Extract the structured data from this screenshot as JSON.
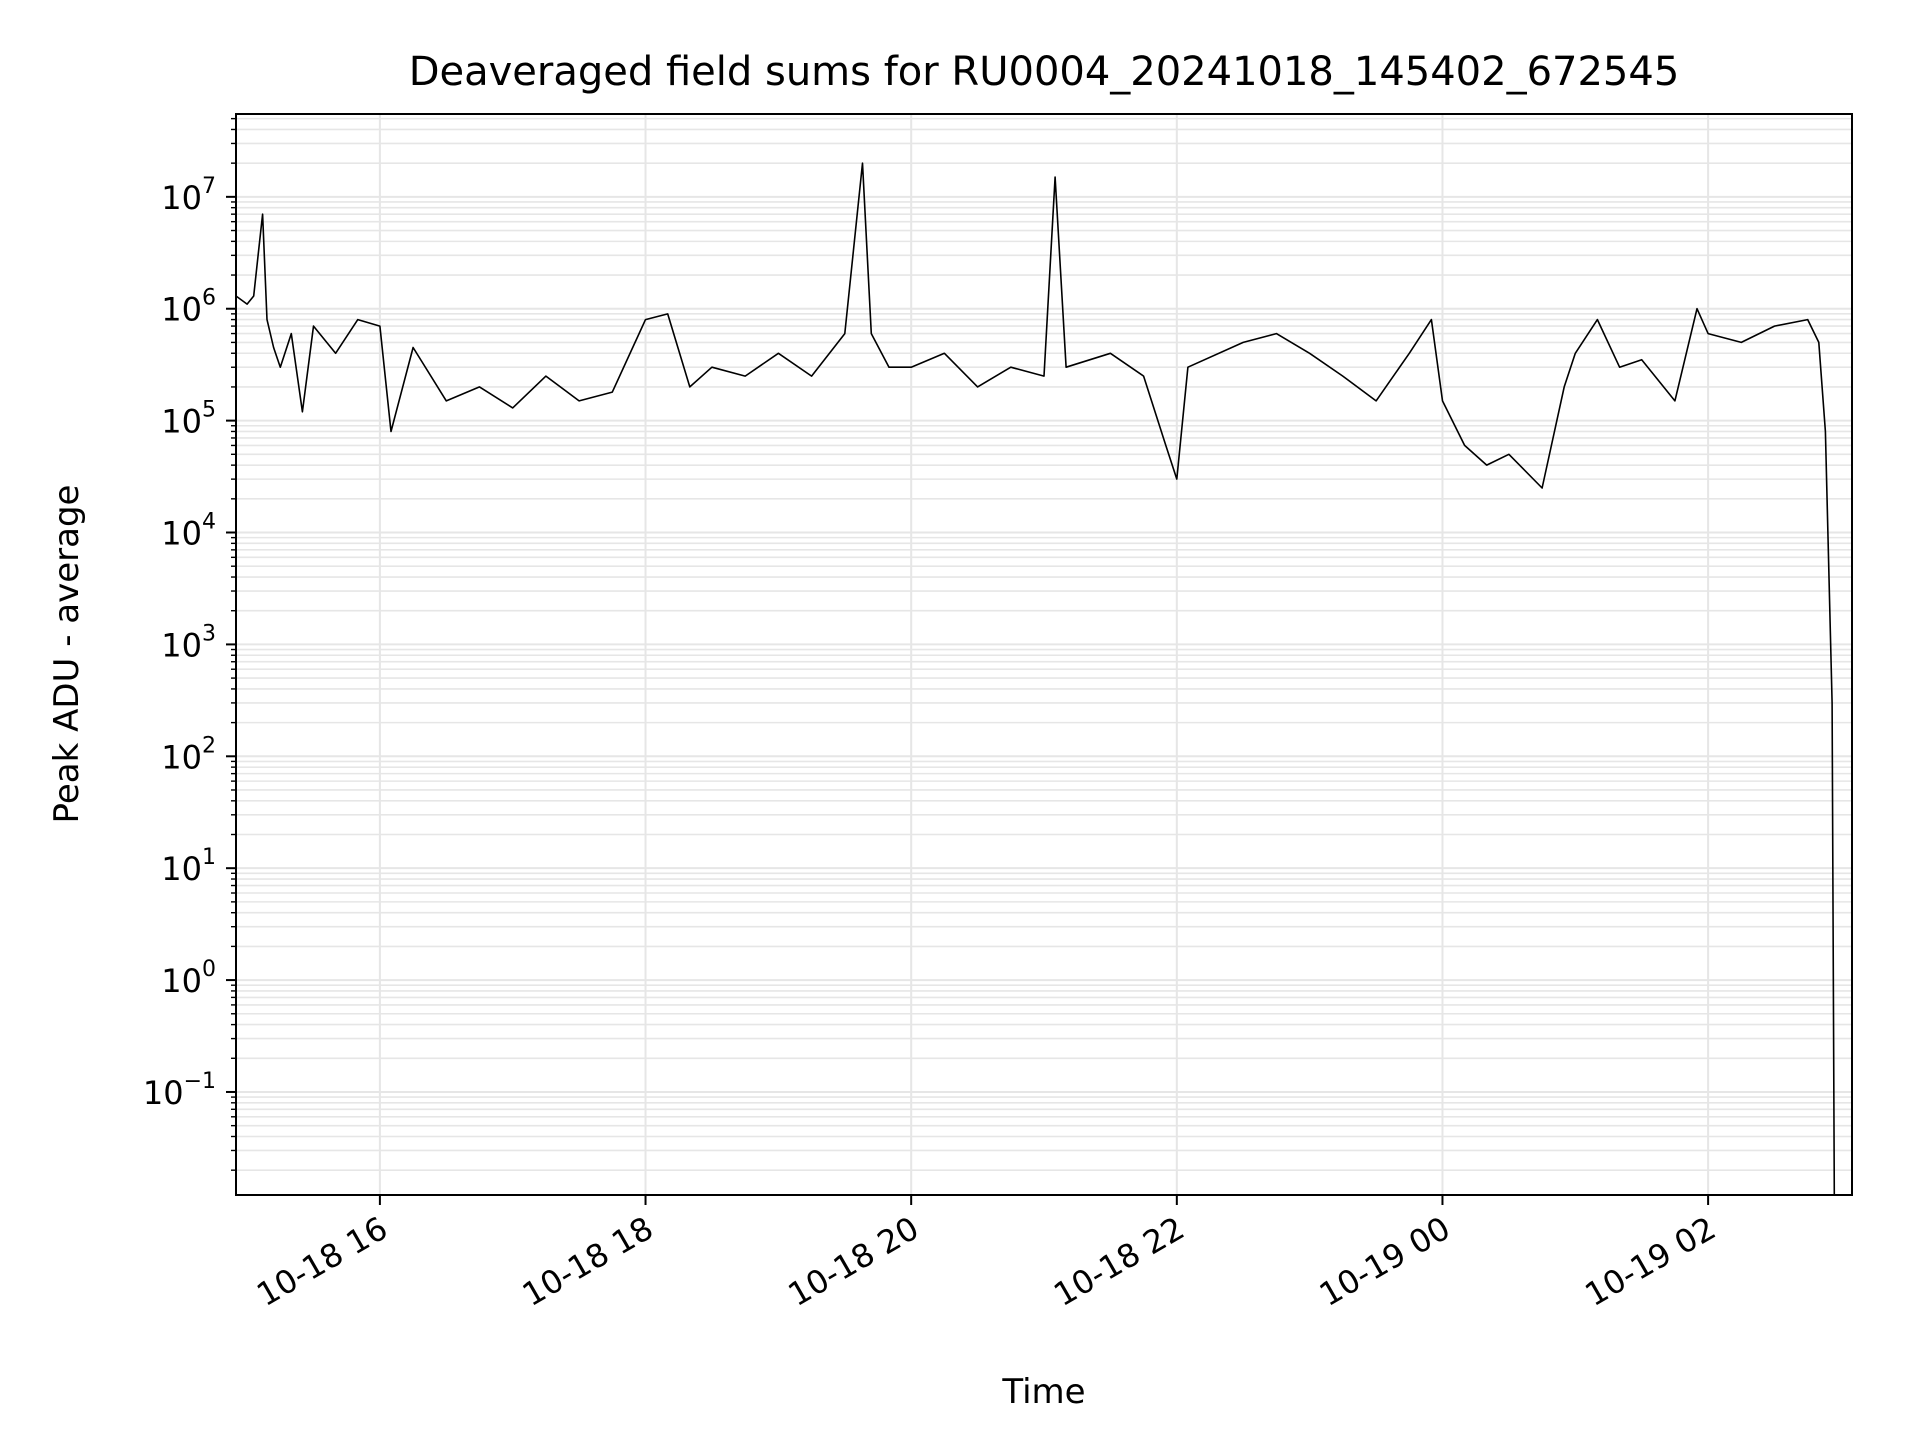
{
  "chart_data": {
    "type": "line",
    "title": "Deaveraged field sums for RU0004_20241018_145402_672545",
    "xlabel": "Time",
    "ylabel": "Peak ADU - average",
    "y_scale": "log",
    "ylim": [
      0.012,
      55000000
    ],
    "xlim": [
      "2024-10-18 14:55",
      "2024-10-19 03:05"
    ],
    "grid": "major and minor, light gray",
    "x_ticks": [
      {
        "t": "2024-10-18 16:00",
        "label": "10-18 16"
      },
      {
        "t": "2024-10-18 18:00",
        "label": "10-18 18"
      },
      {
        "t": "2024-10-18 20:00",
        "label": "10-18 20"
      },
      {
        "t": "2024-10-18 22:00",
        "label": "10-18 22"
      },
      {
        "t": "2024-10-19 00:00",
        "label": "10-19 00"
      },
      {
        "t": "2024-10-19 02:00",
        "label": "10-19 02"
      }
    ],
    "y_ticks": [
      {
        "value": 0.1,
        "base": "10",
        "exp": "−1"
      },
      {
        "value": 1,
        "base": "10",
        "exp": "0"
      },
      {
        "value": 10,
        "base": "10",
        "exp": "1"
      },
      {
        "value": 100,
        "base": "10",
        "exp": "2"
      },
      {
        "value": 1000,
        "base": "10",
        "exp": "3"
      },
      {
        "value": 10000,
        "base": "10",
        "exp": "4"
      },
      {
        "value": 100000,
        "base": "10",
        "exp": "5"
      },
      {
        "value": 1000000,
        "base": "10",
        "exp": "6"
      },
      {
        "value": 10000000,
        "base": "10",
        "exp": "7"
      }
    ],
    "series": [
      {
        "color": "#000000",
        "points": [
          [
            "2024-10-18 14:55",
            1300000
          ],
          [
            "2024-10-18 15:00",
            1100000
          ],
          [
            "2024-10-18 15:03",
            1300000
          ],
          [
            "2024-10-18 15:05",
            3000000
          ],
          [
            "2024-10-18 15:07",
            7000000
          ],
          [
            "2024-10-18 15:09",
            800000
          ],
          [
            "2024-10-18 15:12",
            450000
          ],
          [
            "2024-10-18 15:15",
            300000
          ],
          [
            "2024-10-18 15:20",
            600000
          ],
          [
            "2024-10-18 15:25",
            120000
          ],
          [
            "2024-10-18 15:30",
            700000
          ],
          [
            "2024-10-18 15:40",
            400000
          ],
          [
            "2024-10-18 15:50",
            800000
          ],
          [
            "2024-10-18 16:00",
            700000
          ],
          [
            "2024-10-18 16:05",
            80000
          ],
          [
            "2024-10-18 16:15",
            450000
          ],
          [
            "2024-10-18 16:30",
            150000
          ],
          [
            "2024-10-18 16:45",
            200000
          ],
          [
            "2024-10-18 17:00",
            130000
          ],
          [
            "2024-10-18 17:15",
            250000
          ],
          [
            "2024-10-18 17:30",
            150000
          ],
          [
            "2024-10-18 17:45",
            180000
          ],
          [
            "2024-10-18 18:00",
            800000
          ],
          [
            "2024-10-18 18:10",
            900000
          ],
          [
            "2024-10-18 18:20",
            200000
          ],
          [
            "2024-10-18 18:30",
            300000
          ],
          [
            "2024-10-18 18:45",
            250000
          ],
          [
            "2024-10-18 19:00",
            400000
          ],
          [
            "2024-10-18 19:15",
            250000
          ],
          [
            "2024-10-18 19:30",
            600000
          ],
          [
            "2024-10-18 19:38",
            20000000
          ],
          [
            "2024-10-18 19:42",
            600000
          ],
          [
            "2024-10-18 19:50",
            300000
          ],
          [
            "2024-10-18 20:00",
            300000
          ],
          [
            "2024-10-18 20:15",
            400000
          ],
          [
            "2024-10-18 20:30",
            200000
          ],
          [
            "2024-10-18 20:45",
            300000
          ],
          [
            "2024-10-18 21:00",
            250000
          ],
          [
            "2024-10-18 21:05",
            15000000
          ],
          [
            "2024-10-18 21:10",
            300000
          ],
          [
            "2024-10-18 21:30",
            400000
          ],
          [
            "2024-10-18 21:45",
            250000
          ],
          [
            "2024-10-18 21:55",
            60000
          ],
          [
            "2024-10-18 22:00",
            30000
          ],
          [
            "2024-10-18 22:05",
            300000
          ],
          [
            "2024-10-18 22:30",
            500000
          ],
          [
            "2024-10-18 22:45",
            600000
          ],
          [
            "2024-10-18 23:00",
            400000
          ],
          [
            "2024-10-18 23:15",
            250000
          ],
          [
            "2024-10-18 23:30",
            150000
          ],
          [
            "2024-10-18 23:45",
            400000
          ],
          [
            "2024-10-18 23:55",
            800000
          ],
          [
            "2024-10-19 00:00",
            150000
          ],
          [
            "2024-10-19 00:10",
            60000
          ],
          [
            "2024-10-19 00:20",
            40000
          ],
          [
            "2024-10-19 00:30",
            50000
          ],
          [
            "2024-10-19 00:45",
            25000
          ],
          [
            "2024-10-19 00:55",
            200000
          ],
          [
            "2024-10-19 01:00",
            400000
          ],
          [
            "2024-10-19 01:10",
            800000
          ],
          [
            "2024-10-19 01:20",
            300000
          ],
          [
            "2024-10-19 01:30",
            350000
          ],
          [
            "2024-10-19 01:45",
            150000
          ],
          [
            "2024-10-19 01:55",
            1000000
          ],
          [
            "2024-10-19 02:00",
            600000
          ],
          [
            "2024-10-19 02:15",
            500000
          ],
          [
            "2024-10-19 02:30",
            700000
          ],
          [
            "2024-10-19 02:45",
            800000
          ],
          [
            "2024-10-19 02:50",
            500000
          ],
          [
            "2024-10-19 02:53",
            80000
          ],
          [
            "2024-10-19 02:56",
            300
          ],
          [
            "2024-10-19 02:57",
            0.012
          ]
        ]
      }
    ]
  }
}
